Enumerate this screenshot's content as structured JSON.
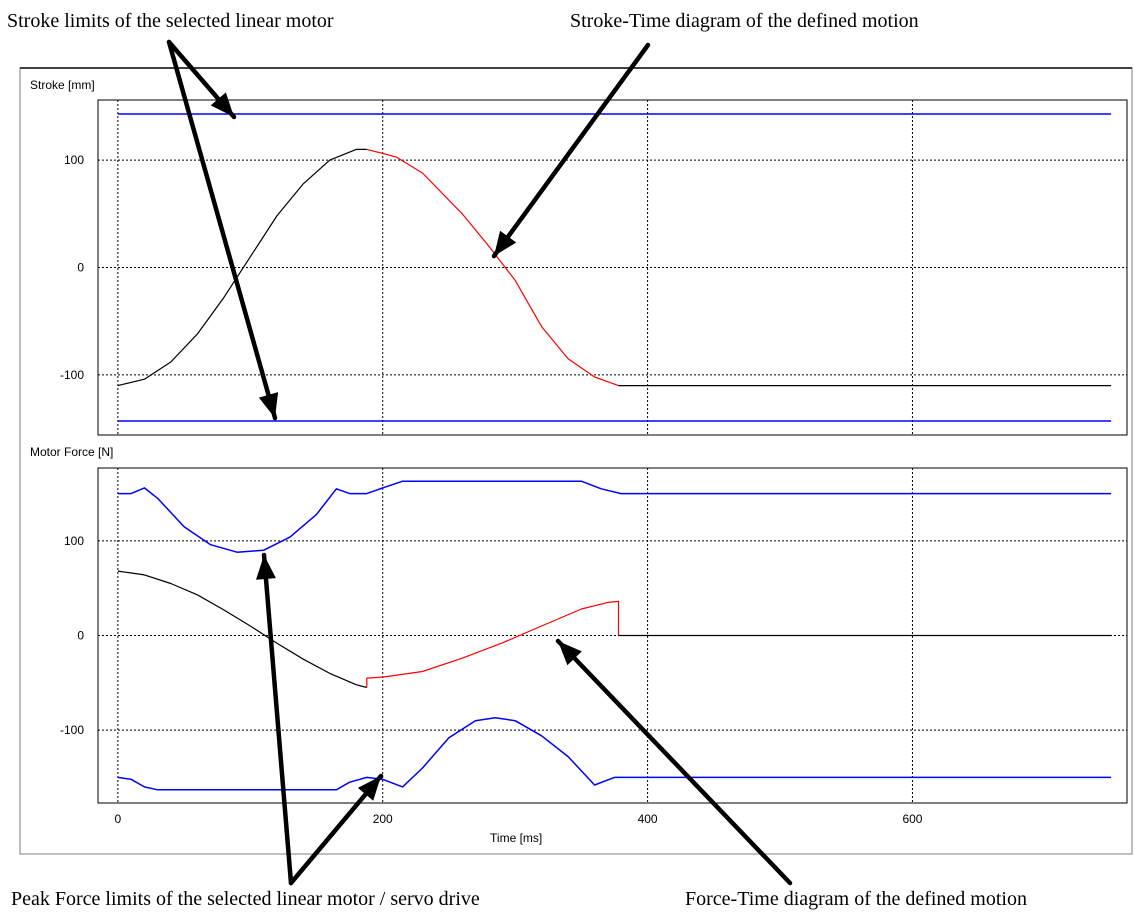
{
  "annotations": {
    "stroke_limits": "Stroke limits of the selected linear motor",
    "stroke_time": "Stroke-Time diagram of the defined motion",
    "peak_force": "Peak Force limits of the selected linear motor / servo drive",
    "force_time": "Force-Time diagram of the defined motion"
  },
  "colors": {
    "limits": "#0000ff",
    "motion": "#000000",
    "highlight": "#ff0000",
    "grid": "#000000"
  },
  "chart_data": [
    {
      "id": "stroke",
      "type": "line",
      "title": "",
      "ylabel": "Stroke [mm]",
      "xlabel": "",
      "xlim": [
        -15,
        762
      ],
      "ylim": [
        -156,
        156
      ],
      "xticks": [
        0,
        200,
        400,
        600
      ],
      "yticks": [
        -100,
        0,
        100
      ],
      "grid": true,
      "series": [
        {
          "role": "limit",
          "color": "#0000ff",
          "x": [
            0,
            750
          ],
          "y": [
            143,
            143
          ]
        },
        {
          "role": "limit",
          "color": "#0000ff",
          "x": [
            0,
            750
          ],
          "y": [
            -143,
            -143
          ]
        },
        {
          "role": "motion",
          "color": "#000000",
          "x": [
            0,
            20,
            40,
            60,
            80,
            100,
            120,
            140,
            160,
            180,
            188
          ],
          "y": [
            -110,
            -104,
            -88,
            -62,
            -28,
            10,
            48,
            78,
            100,
            110,
            110
          ]
        },
        {
          "role": "motion",
          "color": "#ff0000",
          "x": [
            188,
            210,
            230,
            260,
            280,
            300,
            320,
            340,
            360,
            378
          ],
          "y": [
            110,
            103,
            88,
            50,
            20,
            -12,
            -55,
            -85,
            -102,
            -110
          ]
        },
        {
          "role": "motion",
          "color": "#000000",
          "x": [
            378,
            750
          ],
          "y": [
            -110,
            -110
          ]
        }
      ]
    },
    {
      "id": "force",
      "type": "line",
      "title": "",
      "ylabel": "Motor Force [N]",
      "xlabel": "Time [ms]",
      "xlim": [
        -15,
        762
      ],
      "ylim": [
        -177,
        177
      ],
      "xticks": [
        0,
        200,
        400,
        600
      ],
      "yticks": [
        -100,
        0,
        100
      ],
      "grid": true,
      "series": [
        {
          "role": "limit",
          "color": "#0000ff",
          "x": [
            0,
            10,
            20,
            30,
            50,
            70,
            90,
            110,
            130,
            150,
            165,
            175,
            188,
            200,
            215,
            350,
            365,
            380,
            750
          ],
          "y": [
            150,
            150,
            156,
            145,
            115,
            96,
            88,
            90,
            104,
            128,
            155,
            150,
            150,
            156,
            163,
            163,
            155,
            150,
            150
          ]
        },
        {
          "role": "limit",
          "color": "#0000ff",
          "x": [
            0,
            10,
            20,
            30,
            165,
            175,
            188,
            200,
            215,
            230,
            250,
            270,
            285,
            300,
            320,
            340,
            360,
            375,
            385,
            750
          ],
          "y": [
            -150,
            -152,
            -160,
            -163,
            -163,
            -155,
            -150,
            -152,
            -160,
            -140,
            -108,
            -90,
            -87,
            -90,
            -106,
            -128,
            -158,
            -150,
            -150,
            -150
          ]
        },
        {
          "role": "motion",
          "color": "#000000",
          "x": [
            0,
            20,
            40,
            60,
            80,
            100,
            120,
            140,
            160,
            180,
            188
          ],
          "y": [
            68,
            64,
            55,
            43,
            27,
            10,
            -8,
            -25,
            -40,
            -52,
            -55
          ]
        },
        {
          "role": "motion",
          "color": "#ff0000",
          "x": [
            188,
            188,
            200,
            230,
            260,
            290,
            320,
            350,
            370,
            378,
            378
          ],
          "y": [
            -55,
            -45,
            -44,
            -38,
            -24,
            -8,
            10,
            28,
            35,
            36,
            0
          ]
        },
        {
          "role": "motion",
          "color": "#000000",
          "x": [
            378,
            750
          ],
          "y": [
            0,
            0
          ]
        }
      ]
    }
  ]
}
